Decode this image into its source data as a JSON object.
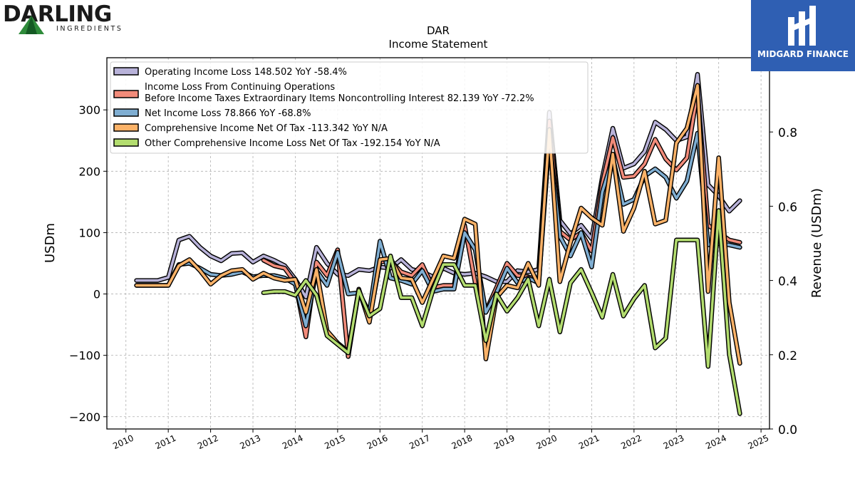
{
  "logos": {
    "left": {
      "name": "DARLING",
      "sub": "INGREDIENTS"
    },
    "right": {
      "name": "MIDGARD FINANCE"
    }
  },
  "chart_data": {
    "type": "line",
    "title": "DAR",
    "subtitle": "Income Statement",
    "ylabel": "USDm",
    "y2label": "Revenue (USDm)",
    "ylim": [
      -220,
      385
    ],
    "y2lim": [
      0.0,
      1.0
    ],
    "xlim": [
      2009.55,
      2025.2
    ],
    "yticks": [
      -200,
      -100,
      0,
      100,
      200,
      300
    ],
    "ytick_labels": [
      "−200",
      "−100",
      "0",
      "100",
      "200",
      "300"
    ],
    "y2ticks": [
      0.0,
      0.2,
      0.4,
      0.6,
      0.8
    ],
    "y2tick_labels": [
      "0.0",
      "0.2",
      "0.4",
      "0.6",
      "0.8"
    ],
    "xticks": [
      2010,
      2011,
      2012,
      2013,
      2014,
      2015,
      2016,
      2017,
      2018,
      2019,
      2020,
      2021,
      2022,
      2023,
      2024,
      2025
    ],
    "xtick_labels": [
      "2010",
      "2011",
      "2012",
      "2013",
      "2014",
      "2015",
      "2016",
      "2017",
      "2018",
      "2019",
      "2020",
      "2021",
      "2022",
      "2023",
      "2024",
      "2025"
    ],
    "grid": true,
    "legend_position": "top-left",
    "series": [
      {
        "name": "Operating Income Loss",
        "legend_text": "Operating Income Loss  148.502 YoY -58.4%",
        "color": "#b8b2d9",
        "points": [
          [
            2010.25,
            22
          ],
          [
            2010.5,
            22
          ],
          [
            2010.75,
            22
          ],
          [
            2011.0,
            27
          ],
          [
            2011.25,
            88
          ],
          [
            2011.5,
            94
          ],
          [
            2011.75,
            76
          ],
          [
            2012.0,
            62
          ],
          [
            2012.25,
            54
          ],
          [
            2012.5,
            66
          ],
          [
            2012.75,
            67
          ],
          [
            2013.0,
            52
          ],
          [
            2013.25,
            62
          ],
          [
            2013.5,
            55
          ],
          [
            2013.75,
            46
          ],
          [
            2014.0,
            24
          ],
          [
            2014.25,
            -5
          ],
          [
            2014.5,
            76
          ],
          [
            2014.75,
            50
          ],
          [
            2015.0,
            32
          ],
          [
            2015.25,
            30
          ],
          [
            2015.5,
            40
          ],
          [
            2015.75,
            38
          ],
          [
            2016.0,
            44
          ],
          [
            2016.25,
            42
          ],
          [
            2016.5,
            56
          ],
          [
            2016.75,
            40
          ],
          [
            2017.0,
            36
          ],
          [
            2017.25,
            28
          ],
          [
            2017.5,
            42
          ],
          [
            2017.75,
            34
          ],
          [
            2018.0,
            32
          ],
          [
            2018.25,
            34
          ],
          [
            2018.5,
            28
          ],
          [
            2018.75,
            20
          ],
          [
            2019.0,
            20
          ],
          [
            2019.25,
            38
          ],
          [
            2019.5,
            36
          ],
          [
            2019.75,
            40
          ],
          [
            2020.0,
            296
          ],
          [
            2020.25,
            120
          ],
          [
            2020.5,
            98
          ],
          [
            2020.75,
            112
          ],
          [
            2021.0,
            90
          ],
          [
            2021.25,
            190
          ],
          [
            2021.5,
            270
          ],
          [
            2021.75,
            205
          ],
          [
            2022.0,
            212
          ],
          [
            2022.25,
            232
          ],
          [
            2022.5,
            280
          ],
          [
            2022.75,
            268
          ],
          [
            2023.0,
            250
          ],
          [
            2023.25,
            256
          ],
          [
            2023.5,
            358
          ],
          [
            2023.75,
            178
          ],
          [
            2024.0,
            160
          ],
          [
            2024.25,
            135
          ],
          [
            2024.5,
            152
          ]
        ]
      },
      {
        "name": "Income Loss From Continuing Operations Before Income Taxes Extraordinary Items Noncontrolling Interest",
        "legend_line1": "Income Loss From Continuing Operations",
        "legend_line2": "Before Income Taxes Extraordinary Items Noncontrolling Interest  82.139 YoY -72.2%",
        "color": "#f28b7a",
        "points": [
          [
            2013.25,
            55
          ],
          [
            2013.5,
            46
          ],
          [
            2013.75,
            42
          ],
          [
            2014.0,
            18
          ],
          [
            2014.25,
            -70
          ],
          [
            2014.5,
            52
          ],
          [
            2014.75,
            30
          ],
          [
            2015.0,
            72
          ],
          [
            2015.25,
            -102
          ],
          [
            2015.5,
            6
          ],
          [
            2015.75,
            -42
          ],
          [
            2016.0,
            52
          ],
          [
            2016.25,
            54
          ],
          [
            2016.5,
            36
          ],
          [
            2016.75,
            30
          ],
          [
            2017.0,
            48
          ],
          [
            2017.25,
            10
          ],
          [
            2017.5,
            14
          ],
          [
            2017.75,
            14
          ],
          [
            2018.0,
            112
          ],
          [
            2018.25,
            18
          ],
          [
            2018.5,
            -28
          ],
          [
            2018.75,
            10
          ],
          [
            2019.0,
            50
          ],
          [
            2019.25,
            30
          ],
          [
            2019.5,
            28
          ],
          [
            2019.75,
            22
          ],
          [
            2020.0,
            282
          ],
          [
            2020.25,
            102
          ],
          [
            2020.5,
            88
          ],
          [
            2020.75,
            100
          ],
          [
            2021.0,
            70
          ],
          [
            2021.25,
            180
          ],
          [
            2021.5,
            255
          ],
          [
            2021.75,
            190
          ],
          [
            2022.0,
            192
          ],
          [
            2022.25,
            212
          ],
          [
            2022.5,
            252
          ],
          [
            2022.75,
            220
          ],
          [
            2023.0,
            202
          ],
          [
            2023.25,
            222
          ],
          [
            2023.5,
            330
          ],
          [
            2023.75,
            112
          ],
          [
            2024.0,
            100
          ],
          [
            2024.25,
            88
          ],
          [
            2024.5,
            84
          ]
        ]
      },
      {
        "name": "Net Income Loss",
        "legend_text": "Net Income Loss  78.866 YoY -68.8%",
        "color": "#7faed2",
        "points": [
          [
            2010.25,
            14
          ],
          [
            2010.5,
            14
          ],
          [
            2010.75,
            14
          ],
          [
            2011.0,
            14
          ],
          [
            2011.25,
            48
          ],
          [
            2011.5,
            50
          ],
          [
            2011.75,
            42
          ],
          [
            2012.0,
            32
          ],
          [
            2012.25,
            30
          ],
          [
            2012.5,
            32
          ],
          [
            2012.75,
            36
          ],
          [
            2013.0,
            28
          ],
          [
            2013.25,
            30
          ],
          [
            2013.5,
            30
          ],
          [
            2013.75,
            26
          ],
          [
            2014.0,
            16
          ],
          [
            2014.25,
            -52
          ],
          [
            2014.5,
            38
          ],
          [
            2014.75,
            14
          ],
          [
            2015.0,
            68
          ],
          [
            2015.25,
            0
          ],
          [
            2015.5,
            2
          ],
          [
            2015.75,
            -30
          ],
          [
            2016.0,
            86
          ],
          [
            2016.25,
            26
          ],
          [
            2016.5,
            22
          ],
          [
            2016.75,
            16
          ],
          [
            2017.0,
            38
          ],
          [
            2017.25,
            4
          ],
          [
            2017.5,
            8
          ],
          [
            2017.75,
            8
          ],
          [
            2018.0,
            100
          ],
          [
            2018.25,
            72
          ],
          [
            2018.5,
            -30
          ],
          [
            2018.75,
            2
          ],
          [
            2019.0,
            42
          ],
          [
            2019.25,
            18
          ],
          [
            2019.5,
            26
          ],
          [
            2019.75,
            18
          ],
          [
            2020.0,
            252
          ],
          [
            2020.25,
            94
          ],
          [
            2020.5,
            62
          ],
          [
            2020.75,
            100
          ],
          [
            2021.0,
            44
          ],
          [
            2021.25,
            166
          ],
          [
            2021.5,
            222
          ],
          [
            2021.75,
            146
          ],
          [
            2022.0,
            154
          ],
          [
            2022.25,
            192
          ],
          [
            2022.5,
            204
          ],
          [
            2022.75,
            190
          ],
          [
            2023.0,
            156
          ],
          [
            2023.25,
            184
          ],
          [
            2023.5,
            262
          ],
          [
            2023.75,
            80
          ],
          [
            2024.0,
            82
          ],
          [
            2024.25,
            80
          ],
          [
            2024.5,
            76
          ]
        ]
      },
      {
        "name": "Comprehensive Income Net Of Tax",
        "legend_text": "Comprehensive Income Net Of Tax  -113.342 YoY N/A",
        "color": "#fbb268",
        "points": [
          [
            2010.25,
            14
          ],
          [
            2010.5,
            14
          ],
          [
            2010.75,
            14
          ],
          [
            2011.0,
            14
          ],
          [
            2011.25,
            46
          ],
          [
            2011.5,
            56
          ],
          [
            2011.75,
            38
          ],
          [
            2012.0,
            16
          ],
          [
            2012.25,
            30
          ],
          [
            2012.5,
            38
          ],
          [
            2012.75,
            40
          ],
          [
            2013.0,
            24
          ],
          [
            2013.25,
            34
          ],
          [
            2013.5,
            26
          ],
          [
            2013.75,
            22
          ],
          [
            2014.0,
            24
          ],
          [
            2014.25,
            -30
          ],
          [
            2014.5,
            40
          ],
          [
            2014.75,
            -60
          ],
          [
            2015.0,
            -80
          ],
          [
            2015.25,
            -94
          ],
          [
            2015.5,
            8
          ],
          [
            2015.75,
            -46
          ],
          [
            2016.0,
            56
          ],
          [
            2016.25,
            58
          ],
          [
            2016.5,
            26
          ],
          [
            2016.75,
            24
          ],
          [
            2017.0,
            -14
          ],
          [
            2017.25,
            24
          ],
          [
            2017.5,
            62
          ],
          [
            2017.75,
            58
          ],
          [
            2018.0,
            122
          ],
          [
            2018.25,
            114
          ],
          [
            2018.5,
            -106
          ],
          [
            2018.75,
            -6
          ],
          [
            2019.0,
            14
          ],
          [
            2019.25,
            10
          ],
          [
            2019.5,
            50
          ],
          [
            2019.75,
            14
          ],
          [
            2020.0,
            268
          ],
          [
            2020.25,
            20
          ],
          [
            2020.5,
            84
          ],
          [
            2020.75,
            140
          ],
          [
            2021.0,
            124
          ],
          [
            2021.25,
            112
          ],
          [
            2021.5,
            228
          ],
          [
            2021.75,
            102
          ],
          [
            2022.0,
            140
          ],
          [
            2022.25,
            200
          ],
          [
            2022.5,
            114
          ],
          [
            2022.75,
            120
          ],
          [
            2023.0,
            246
          ],
          [
            2023.25,
            270
          ],
          [
            2023.5,
            340
          ],
          [
            2023.75,
            4
          ],
          [
            2024.0,
            222
          ],
          [
            2024.25,
            -14
          ],
          [
            2024.5,
            -113
          ]
        ]
      },
      {
        "name": "Other Comprehensive Income Loss Net Of Tax",
        "legend_text": "Other Comprehensive Income Loss Net Of Tax  -192.154 YoY N/A",
        "color": "#b3dd6f",
        "points": [
          [
            2013.25,
            2
          ],
          [
            2013.5,
            4
          ],
          [
            2013.75,
            4
          ],
          [
            2014.0,
            -2
          ],
          [
            2014.25,
            22
          ],
          [
            2014.5,
            -2
          ],
          [
            2014.75,
            -68
          ],
          [
            2015.0,
            -82
          ],
          [
            2015.25,
            -96
          ],
          [
            2015.5,
            6
          ],
          [
            2015.75,
            -36
          ],
          [
            2016.0,
            -24
          ],
          [
            2016.25,
            62
          ],
          [
            2016.5,
            -6
          ],
          [
            2016.75,
            -6
          ],
          [
            2017.0,
            -52
          ],
          [
            2017.25,
            6
          ],
          [
            2017.5,
            48
          ],
          [
            2017.75,
            48
          ],
          [
            2018.0,
            14
          ],
          [
            2018.25,
            14
          ],
          [
            2018.5,
            -76
          ],
          [
            2018.75,
            0
          ],
          [
            2019.0,
            -28
          ],
          [
            2019.25,
            -6
          ],
          [
            2019.5,
            24
          ],
          [
            2019.75,
            -52
          ],
          [
            2020.0,
            24
          ],
          [
            2020.25,
            -62
          ],
          [
            2020.5,
            18
          ],
          [
            2020.75,
            40
          ],
          [
            2021.0,
            2
          ],
          [
            2021.25,
            -38
          ],
          [
            2021.5,
            32
          ],
          [
            2021.75,
            -36
          ],
          [
            2022.0,
            -8
          ],
          [
            2022.25,
            14
          ],
          [
            2022.5,
            -88
          ],
          [
            2022.75,
            -72
          ],
          [
            2023.0,
            88
          ],
          [
            2023.25,
            88
          ],
          [
            2023.5,
            88
          ],
          [
            2023.75,
            -118
          ],
          [
            2024.0,
            136
          ],
          [
            2024.25,
            -98
          ],
          [
            2024.5,
            -195
          ]
        ]
      }
    ]
  }
}
